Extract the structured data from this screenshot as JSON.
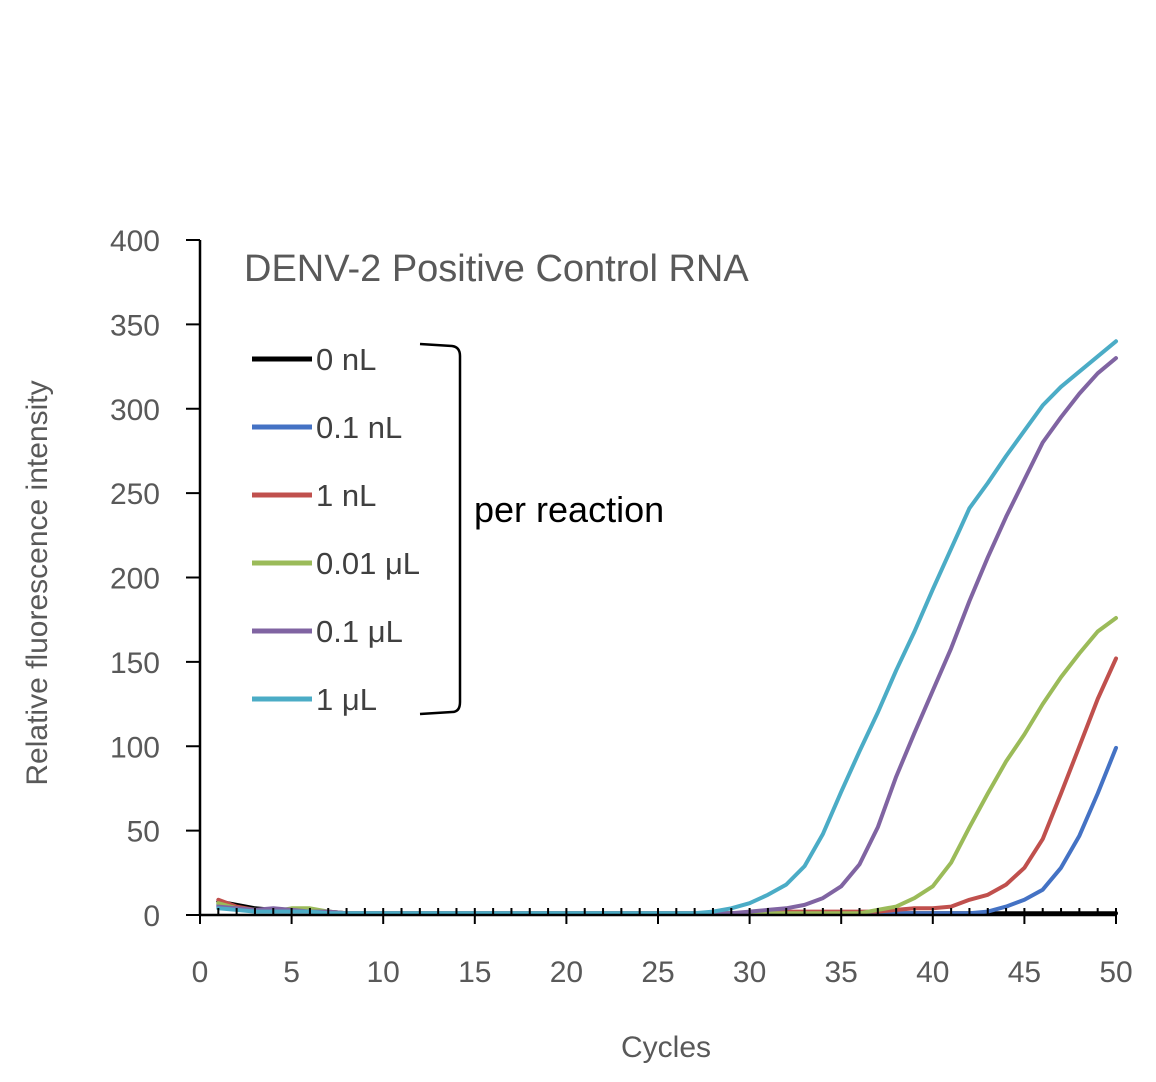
{
  "chart_data": {
    "type": "line",
    "title": "DENV-2 Positive Control RNA",
    "xlabel": "Cycles",
    "ylabel": "Relative fluorescence intensity",
    "xlim": [
      0,
      50
    ],
    "ylim": [
      0,
      400
    ],
    "xticks": [
      0,
      5,
      10,
      15,
      20,
      25,
      30,
      35,
      40,
      45,
      50
    ],
    "yticks": [
      0,
      50,
      100,
      150,
      200,
      250,
      300,
      350,
      400
    ],
    "grid": false,
    "legend_position": "top-left",
    "annotation": "per reaction",
    "x": [
      1,
      2,
      3,
      4,
      5,
      6,
      7,
      8,
      9,
      10,
      11,
      12,
      13,
      14,
      15,
      16,
      17,
      18,
      19,
      20,
      21,
      22,
      23,
      24,
      25,
      26,
      27,
      28,
      29,
      30,
      31,
      32,
      33,
      34,
      35,
      36,
      37,
      38,
      39,
      40,
      41,
      42,
      43,
      44,
      45,
      46,
      47,
      48,
      49,
      50
    ],
    "series": [
      {
        "name": "0 nL",
        "color": "#000000",
        "values": [
          8,
          6,
          4,
          3,
          3,
          2,
          2,
          1,
          1,
          1,
          1,
          1,
          1,
          1,
          1,
          1,
          1,
          1,
          1,
          1,
          1,
          1,
          1,
          1,
          1,
          1,
          1,
          1,
          1,
          1,
          1,
          1,
          1,
          1,
          1,
          1,
          1,
          1,
          1,
          1,
          1,
          1,
          1,
          1,
          1,
          1,
          1,
          1,
          1,
          1
        ]
      },
      {
        "name": "0.1 nL",
        "color": "#4472C4",
        "values": [
          6,
          4,
          3,
          2,
          2,
          2,
          1,
          1,
          1,
          1,
          1,
          1,
          1,
          1,
          1,
          1,
          1,
          1,
          1,
          1,
          1,
          1,
          1,
          1,
          1,
          1,
          1,
          1,
          1,
          1,
          1,
          1,
          1,
          1,
          1,
          1,
          1,
          1,
          1,
          1,
          1,
          1,
          2,
          5,
          9,
          15,
          28,
          47,
          72,
          99
        ]
      },
      {
        "name": "1 nL",
        "color": "#C0504D",
        "values": [
          9,
          5,
          3,
          2,
          2,
          2,
          1,
          1,
          1,
          1,
          1,
          1,
          1,
          1,
          1,
          1,
          1,
          1,
          1,
          1,
          1,
          1,
          1,
          1,
          1,
          1,
          1,
          1,
          1,
          1,
          1,
          2,
          2,
          2,
          2,
          2,
          2,
          3,
          4,
          4,
          5,
          9,
          12,
          18,
          28,
          45,
          72,
          100,
          128,
          152
        ]
      },
      {
        "name": "0.01 μL",
        "color": "#9BBB59",
        "values": [
          7,
          4,
          3,
          2,
          4,
          4,
          2,
          1,
          1,
          1,
          1,
          1,
          1,
          1,
          1,
          1,
          1,
          1,
          1,
          1,
          1,
          1,
          1,
          1,
          1,
          1,
          1,
          1,
          1,
          1,
          1,
          1,
          1,
          1,
          1,
          1,
          3,
          5,
          10,
          17,
          31,
          52,
          72,
          91,
          107,
          125,
          141,
          155,
          168,
          176
        ]
      },
      {
        "name": "0.1 μL",
        "color": "#8064A2",
        "values": [
          5,
          4,
          3,
          4,
          3,
          2,
          2,
          1,
          1,
          1,
          1,
          1,
          1,
          1,
          1,
          1,
          1,
          1,
          1,
          1,
          1,
          1,
          1,
          1,
          1,
          1,
          1,
          1,
          1,
          2,
          3,
          4,
          6,
          10,
          17,
          30,
          52,
          82,
          108,
          133,
          158,
          186,
          212,
          236,
          258,
          280,
          295,
          309,
          321,
          330
        ]
      },
      {
        "name": "1 μL",
        "color": "#4BACC6",
        "values": [
          4,
          3,
          2,
          2,
          2,
          2,
          1,
          1,
          1,
          1,
          1,
          1,
          1,
          1,
          1,
          1,
          1,
          1,
          1,
          1,
          1,
          1,
          1,
          1,
          1,
          1,
          1,
          2,
          4,
          7,
          12,
          18,
          29,
          48,
          73,
          97,
          120,
          145,
          168,
          193,
          217,
          241,
          256,
          272,
          287,
          302,
          313,
          322,
          331,
          340
        ]
      }
    ]
  }
}
